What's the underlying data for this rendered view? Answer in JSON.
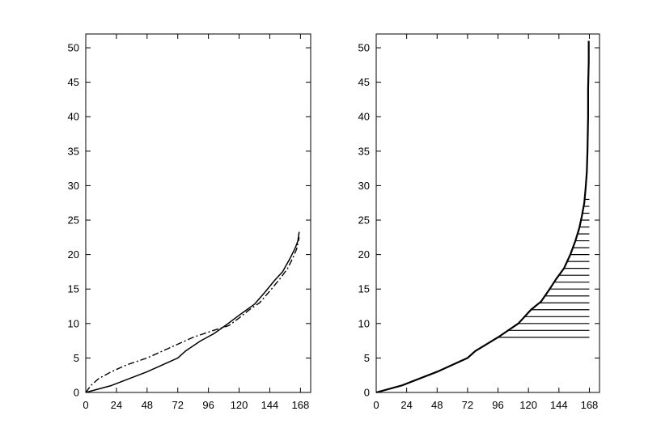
{
  "chart_data": [
    {
      "type": "line",
      "title": "",
      "xlabel": "",
      "ylabel": "",
      "xlim": [
        0,
        176
      ],
      "ylim": [
        0,
        52
      ],
      "xticks": [
        0,
        24,
        48,
        72,
        96,
        120,
        144,
        168
      ],
      "yticks": [
        0,
        5,
        10,
        15,
        20,
        25,
        30,
        35,
        40,
        45,
        50
      ],
      "grid": false,
      "series": [
        {
          "style": "solid",
          "points": [
            [
              0,
              0
            ],
            [
              20,
              1
            ],
            [
              48,
              3
            ],
            [
              72,
              5
            ],
            [
              78,
              6
            ],
            [
              90,
              7.5
            ],
            [
              100,
              8.5
            ],
            [
              110,
              9.8
            ],
            [
              120,
              11.2
            ],
            [
              132,
              12.8
            ],
            [
              140,
              14.5
            ],
            [
              148,
              16.3
            ],
            [
              154,
              17.5
            ],
            [
              160,
              19.5
            ],
            [
              164,
              21
            ],
            [
              166,
              22
            ],
            [
              167,
              23.3
            ]
          ]
        },
        {
          "style": "dashdot",
          "points": [
            [
              0,
              0
            ],
            [
              4,
              1
            ],
            [
              10,
              2
            ],
            [
              20,
              3
            ],
            [
              32,
              4
            ],
            [
              48,
              5
            ],
            [
              60,
              6
            ],
            [
              72,
              7
            ],
            [
              84,
              8
            ],
            [
              100,
              9
            ],
            [
              112,
              9.7
            ],
            [
              120,
              10.8
            ],
            [
              128,
              12
            ],
            [
              136,
              13
            ],
            [
              144,
              14.7
            ],
            [
              152,
              16.5
            ],
            [
              158,
              18
            ],
            [
              162,
              19.5
            ],
            [
              165,
              20.8
            ],
            [
              167,
              22.5
            ]
          ]
        }
      ]
    },
    {
      "type": "line",
      "title": "",
      "xlabel": "",
      "ylabel": "",
      "xlim": [
        0,
        176
      ],
      "ylim": [
        0,
        52
      ],
      "xticks": [
        0,
        24,
        48,
        72,
        96,
        120,
        144,
        168
      ],
      "yticks": [
        0,
        5,
        10,
        15,
        20,
        25,
        30,
        35,
        40,
        45,
        50
      ],
      "grid": false,
      "series": [
        {
          "style": "solid-thick",
          "points": [
            [
              0,
              0
            ],
            [
              20,
              1
            ],
            [
              48,
              3
            ],
            [
              72,
              5
            ],
            [
              78,
              6
            ],
            [
              96,
              8
            ],
            [
              112,
              10
            ],
            [
              122,
              12
            ],
            [
              130,
              13.2
            ],
            [
              136,
              14.8
            ],
            [
              142,
              16.5
            ],
            [
              148,
              18
            ],
            [
              153,
              20
            ],
            [
              157,
              22
            ],
            [
              160,
              23.8
            ],
            [
              162,
              25.5
            ],
            [
              164,
              27.5
            ],
            [
              165,
              29.5
            ],
            [
              166,
              32
            ],
            [
              166.5,
              35
            ],
            [
              167,
              40
            ],
            [
              167,
              44
            ],
            [
              167.5,
              48
            ],
            [
              167.5,
              51
            ]
          ]
        }
      ],
      "hlines": {
        "x_end": 168,
        "y_values": [
          8,
          9,
          10,
          11,
          12,
          13,
          14,
          15,
          16,
          17,
          18,
          19,
          20,
          21,
          22,
          23,
          24,
          25,
          26,
          27,
          28
        ]
      }
    }
  ]
}
